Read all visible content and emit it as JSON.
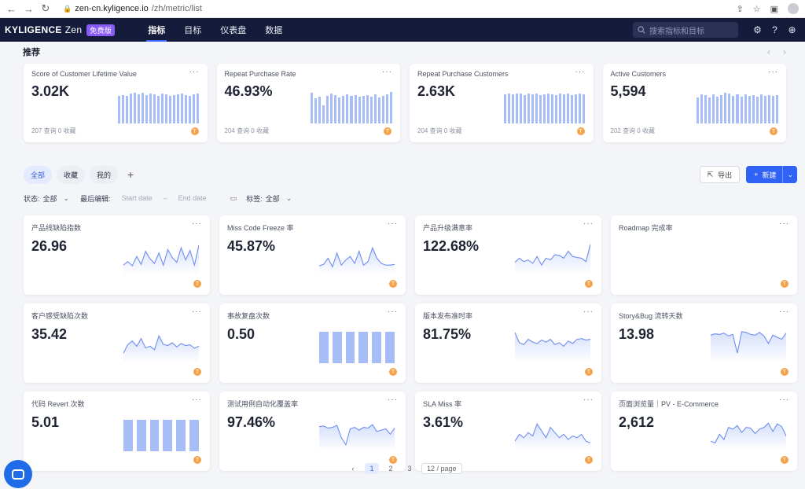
{
  "browser": {
    "url_host": "zen-cn.kyligence.io",
    "url_path": "/zh/metric/list"
  },
  "app": {
    "brand": "KYLIGENCE",
    "product": "Zen",
    "badge": "免费版",
    "nav": [
      "指标",
      "目标",
      "仪表盘",
      "数据"
    ],
    "active_nav": "指标",
    "search_placeholder": "搜索指标和目标",
    "accent": "#3f6cff"
  },
  "recommend": {
    "title": "推荐",
    "cards": [
      {
        "title": "Score of Customer Lifetime Value",
        "value": "3.02K",
        "foot": "207 查询 0 收藏",
        "owner": "T",
        "bars": [
          80,
          82,
          80,
          86,
          88,
          84,
          88,
          82,
          86,
          84,
          80,
          86,
          84,
          80,
          82,
          84,
          86,
          82,
          80,
          84,
          86
        ]
      },
      {
        "title": "Repeat Purchase Rate",
        "value": "46.93%",
        "foot": "204 查询 0 收藏",
        "owner": "T",
        "bars": [
          88,
          72,
          78,
          52,
          80,
          86,
          82,
          74,
          80,
          84,
          80,
          82,
          78,
          80,
          82,
          78,
          84,
          74,
          80,
          84,
          90
        ]
      },
      {
        "title": "Repeat Purchase Customers",
        "value": "2.63K",
        "foot": "204 查询 0 收藏",
        "owner": "T",
        "bars": [
          84,
          86,
          84,
          86,
          86,
          82,
          86,
          84,
          86,
          82,
          84,
          86,
          84,
          82,
          86,
          84,
          86,
          82,
          84,
          86,
          84
        ]
      },
      {
        "title": "Active Customers",
        "value": "5,594",
        "foot": "202 查询 0 收藏",
        "owner": "T",
        "bars": [
          76,
          84,
          82,
          76,
          84,
          78,
          82,
          88,
          86,
          80,
          84,
          78,
          84,
          80,
          82,
          78,
          84,
          80,
          82,
          80,
          82
        ]
      }
    ]
  },
  "list": {
    "tabs": [
      "全部",
      "收藏",
      "我的"
    ],
    "active_tab": "全部",
    "export_label": "导出",
    "new_label": "新建",
    "filters": {
      "status_label": "状态:",
      "status_value": "全部",
      "edited_label": "最后编辑:",
      "start_placeholder": "Start date",
      "end_placeholder": "End date",
      "tag_label": "标签:",
      "tag_value": "全部"
    },
    "metrics": [
      {
        "title": "产品线缺陷指数",
        "value": "26.96",
        "owner": "T",
        "chart": "line",
        "points": [
          20,
          30,
          18,
          45,
          22,
          60,
          38,
          25,
          55,
          20,
          65,
          42,
          28,
          70,
          35,
          62,
          20,
          78
        ]
      },
      {
        "title": "Miss Code Freeze 率",
        "value": "45.87%",
        "owner": "T",
        "chart": "line",
        "points": [
          18,
          22,
          40,
          15,
          55,
          20,
          35,
          45,
          25,
          60,
          20,
          30,
          70,
          40,
          25,
          20,
          20,
          22
        ]
      },
      {
        "title": "产品升级满意率",
        "value": "122.68%",
        "owner": "T",
        "chart": "line",
        "points": [
          28,
          40,
          30,
          35,
          25,
          45,
          20,
          40,
          35,
          50,
          48,
          40,
          60,
          45,
          42,
          40,
          30,
          80
        ]
      },
      {
        "title": "Roadmap 完成率",
        "value": "",
        "owner": "T",
        "chart": "none",
        "points": []
      },
      {
        "title": "客户感受缺陷次数",
        "value": "35.42",
        "owner": "T",
        "chart": "line",
        "points": [
          20,
          45,
          55,
          40,
          62,
          35,
          40,
          30,
          70,
          45,
          42,
          50,
          38,
          48,
          42,
          44,
          34,
          40
        ]
      },
      {
        "title": "事故复盘次数",
        "value": "0.50",
        "owner": "T",
        "chart": "columns",
        "points": [
          100,
          100,
          100,
          100,
          100,
          100
        ]
      },
      {
        "title": "版本发布准时率",
        "value": "81.75%",
        "owner": "T",
        "chart": "line",
        "points": [
          80,
          50,
          45,
          60,
          52,
          48,
          58,
          52,
          60,
          45,
          50,
          40,
          55,
          48,
          60,
          62,
          58,
          60
        ]
      },
      {
        "title": "Story&Bug 流转天数",
        "value": "13.98",
        "owner": "T",
        "chart": "line",
        "points": [
          72,
          76,
          74,
          78,
          70,
          74,
          20,
          82,
          80,
          74,
          72,
          80,
          70,
          48,
          72,
          66,
          60,
          78
        ]
      },
      {
        "title": "代码 Revert 次数",
        "value": "5.01",
        "owner": "T",
        "chart": "columns",
        "points": [
          100,
          100,
          100,
          100,
          100,
          100
        ]
      },
      {
        "title": "测试用例自动化覆盖率",
        "value": "97.46%",
        "owner": "T",
        "chart": "line",
        "points": [
          62,
          64,
          58,
          60,
          66,
          30,
          10,
          56,
          60,
          52,
          60,
          58,
          68,
          48,
          52,
          56,
          40,
          58
        ]
      },
      {
        "title": "SLA Miss 率",
        "value": "3.61%",
        "owner": "T",
        "chart": "line",
        "points": [
          20,
          40,
          30,
          45,
          35,
          70,
          50,
          30,
          60,
          45,
          30,
          40,
          25,
          35,
          30,
          40,
          20,
          15
        ]
      },
      {
        "title": "页面浏览量｜PV - E-Commerce",
        "value": "2,612",
        "owner": "T",
        "chart": "line",
        "points": [
          20,
          15,
          40,
          25,
          60,
          55,
          65,
          45,
          60,
          58,
          42,
          55,
          60,
          72,
          48,
          70,
          62,
          35
        ]
      }
    ]
  },
  "pager": {
    "pages": [
      "1",
      "2",
      "3"
    ],
    "active": "1",
    "size": "12 / page"
  }
}
